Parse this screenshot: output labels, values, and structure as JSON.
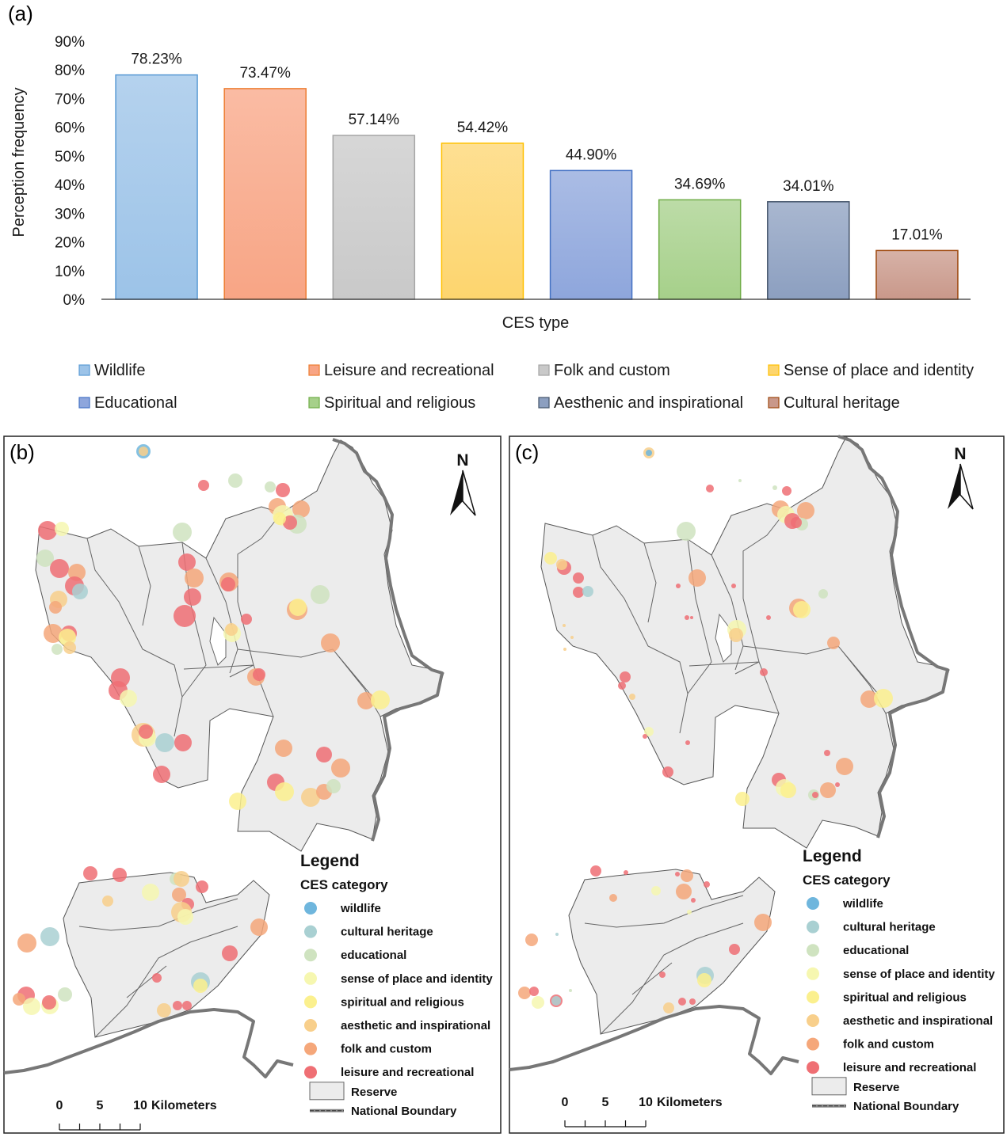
{
  "panels": {
    "a": "(a)",
    "b": "(b)",
    "c": "(c)"
  },
  "chart_data": {
    "type": "bar",
    "title": "",
    "xlabel": "CES type",
    "ylabel": "Perception frequency",
    "ylim": [
      0,
      90
    ],
    "yticks": [
      "0%",
      "10%",
      "20%",
      "30%",
      "40%",
      "50%",
      "60%",
      "70%",
      "80%",
      "90%"
    ],
    "grid": false,
    "legend_position": "bottom",
    "categories": [
      "Wildlife",
      "Leisure and recreational",
      "Folk and custom",
      "Sense of place and identity",
      "Educational",
      "Spiritual and religious",
      "Aesthenic and inspirational",
      "Cultural heritage"
    ],
    "values": [
      78.23,
      73.47,
      57.14,
      54.42,
      44.9,
      34.69,
      34.01,
      17.01
    ],
    "labels": [
      "78.23%",
      "73.47%",
      "57.14%",
      "54.42%",
      "44.90%",
      "34.69%",
      "34.01%",
      "17.01%"
    ],
    "colors": [
      "#9cc3e8",
      "#f8a585",
      "#c9c9c9",
      "#fdd56e",
      "#8ea6dc",
      "#a6d08a",
      "#8c9fc0",
      "#c9988a"
    ],
    "border_colors": [
      "#5b9bd5",
      "#ed7d31",
      "#a5a5a5",
      "#ffc000",
      "#4472c4",
      "#70ad47",
      "#44546a",
      "#9e480e"
    ]
  },
  "map_legend": {
    "title": "Legend",
    "subtitle": "CES category",
    "items": [
      {
        "label": "wildlife",
        "color": "#6fb6dd"
      },
      {
        "label": "cultural heritage",
        "color": "#a9d0d2"
      },
      {
        "label": "educational",
        "color": "#cfe3c0"
      },
      {
        "label": "sense of place and identity",
        "color": "#f6f7b0"
      },
      {
        "label": "spiritual and religious",
        "color": "#fbf08e"
      },
      {
        "label": "aesthetic and inspirational",
        "color": "#f8cf8b"
      },
      {
        "label": "folk and custom",
        "color": "#f5a77a"
      },
      {
        "label": "leisure and recreational",
        "color": "#ef6f74"
      }
    ],
    "reserve": "Reserve",
    "boundary": "National Boundary",
    "north": "N",
    "scale": {
      "t0": "0",
      "t5": "5",
      "t10": "10",
      "unit": "Kilometers"
    }
  }
}
